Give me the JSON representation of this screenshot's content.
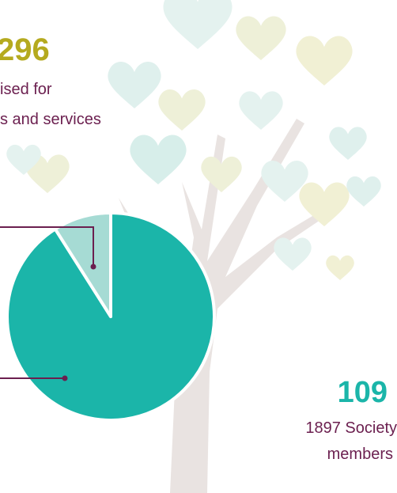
{
  "chart_data": {
    "type": "pie",
    "categories": [
      null,
      null
    ],
    "values": [
      91,
      9
    ],
    "colors": [
      "#1bb5a9",
      "#a6dbd4"
    ],
    "annotations": [
      "296",
      "ised for",
      "s and services",
      "109",
      "1897 Society",
      "members"
    ]
  }
}
